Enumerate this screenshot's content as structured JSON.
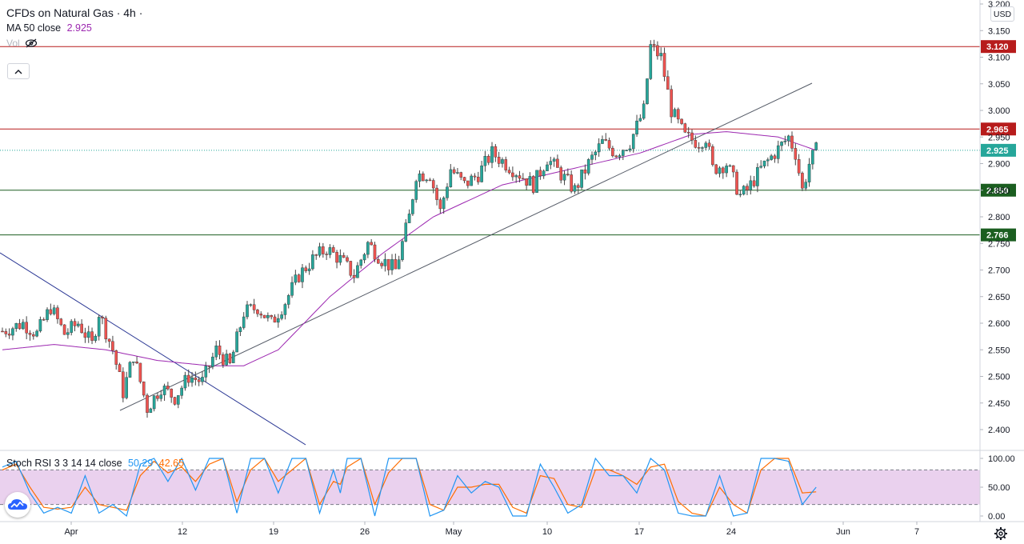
{
  "header": {
    "symbol_title": "CFDs on Natural Gas · 4h ·",
    "ma_label": "MA 50 close",
    "ma_value": "2.925",
    "vol_label": "Vol",
    "currency": "USD"
  },
  "stoch_rsi": {
    "label": "Stoch RSI 3 3 14 14 close",
    "k_value": "50.29",
    "d_value": "42.65",
    "axis_ticks": [
      "100.00",
      "50.00",
      "0.00"
    ],
    "band_upper": 80,
    "band_lower": 20
  },
  "colors": {
    "up": "#26a69a",
    "down": "#ef5350",
    "ma": "#9c27b0",
    "resistance": "#b71c1c",
    "support": "#1b5e20",
    "current": "#26a69a",
    "stoch_k": "#2196f3",
    "stoch_d": "#ff6d00",
    "stoch_band": "#e1bee7"
  },
  "chart_data": {
    "type": "candlestick",
    "title": "CFDs on Natural Gas · 4h",
    "ylim": [
      2.36,
      3.2
    ],
    "y_ticks": [
      "3.200",
      "3.150",
      "3.100",
      "3.050",
      "3.000",
      "2.950",
      "2.900",
      "2.850",
      "2.800",
      "2.750",
      "2.700",
      "2.650",
      "2.600",
      "2.550",
      "2.500",
      "2.450",
      "2.400"
    ],
    "x_ticks": [
      "Apr",
      "12",
      "19",
      "26",
      "May",
      "10",
      "17",
      "24",
      "Jun",
      "7"
    ],
    "price_labels": [
      {
        "value": 3.12,
        "label": "3.120",
        "kind": "resistance"
      },
      {
        "value": 2.965,
        "label": "2.965",
        "kind": "resistance"
      },
      {
        "value": 2.925,
        "label": "2.925",
        "kind": "current"
      },
      {
        "value": 2.85,
        "label": "2.850",
        "kind": "support"
      },
      {
        "value": 2.766,
        "label": "2.766",
        "kind": "support"
      }
    ],
    "anchors": [
      [
        0,
        2.585
      ],
      [
        6,
        2.6
      ],
      [
        10,
        2.58
      ],
      [
        14,
        2.63
      ],
      [
        18,
        2.58
      ],
      [
        22,
        2.6
      ],
      [
        26,
        2.56
      ],
      [
        28,
        2.62
      ],
      [
        32,
        2.55
      ],
      [
        35,
        2.47
      ],
      [
        38,
        2.54
      ],
      [
        42,
        2.44
      ],
      [
        46,
        2.48
      ],
      [
        50,
        2.46
      ],
      [
        54,
        2.5
      ],
      [
        58,
        2.49
      ],
      [
        62,
        2.55
      ],
      [
        66,
        2.52
      ],
      [
        70,
        2.62
      ],
      [
        74,
        2.63
      ],
      [
        78,
        2.6
      ],
      [
        82,
        2.64
      ],
      [
        86,
        2.69
      ],
      [
        90,
        2.72
      ],
      [
        94,
        2.74
      ],
      [
        98,
        2.72
      ],
      [
        102,
        2.69
      ],
      [
        106,
        2.75
      ],
      [
        110,
        2.72
      ],
      [
        114,
        2.7
      ],
      [
        118,
        2.8
      ],
      [
        120,
        2.88
      ],
      [
        124,
        2.88
      ],
      [
        127,
        2.81
      ],
      [
        130,
        2.89
      ],
      [
        134,
        2.86
      ],
      [
        138,
        2.88
      ],
      [
        142,
        2.92
      ],
      [
        146,
        2.9
      ],
      [
        150,
        2.88
      ],
      [
        154,
        2.86
      ],
      [
        158,
        2.91
      ],
      [
        162,
        2.88
      ],
      [
        166,
        2.85
      ],
      [
        170,
        2.9
      ],
      [
        174,
        2.94
      ],
      [
        178,
        2.92
      ],
      [
        182,
        2.94
      ],
      [
        186,
        3.0
      ],
      [
        188,
        3.12
      ],
      [
        191,
        3.1
      ],
      [
        194,
        3.0
      ],
      [
        198,
        2.95
      ],
      [
        202,
        2.94
      ],
      [
        204,
        2.95
      ],
      [
        206,
        2.89
      ],
      [
        210,
        2.9
      ],
      [
        214,
        2.84
      ],
      [
        216,
        2.85
      ],
      [
        220,
        2.89
      ],
      [
        224,
        2.92
      ],
      [
        228,
        2.95
      ],
      [
        230,
        2.92
      ],
      [
        232,
        2.85
      ],
      [
        234,
        2.9
      ],
      [
        236,
        2.925
      ]
    ],
    "ma50_anchors": [
      [
        0,
        2.55
      ],
      [
        15,
        2.56
      ],
      [
        30,
        2.55
      ],
      [
        45,
        2.53
      ],
      [
        60,
        2.52
      ],
      [
        70,
        2.52
      ],
      [
        80,
        2.55
      ],
      [
        95,
        2.65
      ],
      [
        110,
        2.73
      ],
      [
        125,
        2.8
      ],
      [
        145,
        2.86
      ],
      [
        165,
        2.89
      ],
      [
        185,
        2.92
      ],
      [
        200,
        2.955
      ],
      [
        210,
        2.96
      ],
      [
        225,
        2.95
      ],
      [
        236,
        2.925
      ]
    ],
    "stoch_k_anchors": [
      [
        0,
        85
      ],
      [
        4,
        95
      ],
      [
        8,
        40
      ],
      [
        12,
        5
      ],
      [
        16,
        15
      ],
      [
        20,
        5
      ],
      [
        24,
        70
      ],
      [
        28,
        5
      ],
      [
        32,
        20
      ],
      [
        36,
        0
      ],
      [
        40,
        90
      ],
      [
        44,
        100
      ],
      [
        48,
        60
      ],
      [
        52,
        100
      ],
      [
        56,
        45
      ],
      [
        60,
        100
      ],
      [
        64,
        100
      ],
      [
        68,
        5
      ],
      [
        72,
        100
      ],
      [
        76,
        100
      ],
      [
        80,
        40
      ],
      [
        84,
        100
      ],
      [
        88,
        100
      ],
      [
        92,
        5
      ],
      [
        96,
        80
      ],
      [
        98,
        40
      ],
      [
        100,
        100
      ],
      [
        104,
        100
      ],
      [
        108,
        0
      ],
      [
        112,
        100
      ],
      [
        116,
        100
      ],
      [
        120,
        100
      ],
      [
        124,
        0
      ],
      [
        128,
        10
      ],
      [
        132,
        70
      ],
      [
        136,
        40
      ],
      [
        140,
        60
      ],
      [
        144,
        50
      ],
      [
        148,
        0
      ],
      [
        152,
        0
      ],
      [
        156,
        90
      ],
      [
        160,
        50
      ],
      [
        164,
        5
      ],
      [
        168,
        20
      ],
      [
        172,
        100
      ],
      [
        176,
        70
      ],
      [
        180,
        70
      ],
      [
        184,
        40
      ],
      [
        188,
        100
      ],
      [
        192,
        80
      ],
      [
        196,
        5
      ],
      [
        200,
        0
      ],
      [
        204,
        0
      ],
      [
        208,
        70
      ],
      [
        212,
        0
      ],
      [
        216,
        5
      ],
      [
        220,
        100
      ],
      [
        224,
        100
      ],
      [
        228,
        95
      ],
      [
        232,
        20
      ],
      [
        236,
        50
      ]
    ],
    "stoch_d_anchors": [
      [
        0,
        80
      ],
      [
        4,
        90
      ],
      [
        8,
        50
      ],
      [
        12,
        15
      ],
      [
        16,
        12
      ],
      [
        20,
        15
      ],
      [
        24,
        50
      ],
      [
        28,
        20
      ],
      [
        32,
        15
      ],
      [
        36,
        10
      ],
      [
        40,
        70
      ],
      [
        44,
        95
      ],
      [
        48,
        75
      ],
      [
        52,
        85
      ],
      [
        56,
        60
      ],
      [
        60,
        90
      ],
      [
        64,
        100
      ],
      [
        68,
        25
      ],
      [
        72,
        80
      ],
      [
        76,
        100
      ],
      [
        80,
        60
      ],
      [
        84,
        80
      ],
      [
        88,
        100
      ],
      [
        92,
        20
      ],
      [
        96,
        60
      ],
      [
        98,
        55
      ],
      [
        100,
        85
      ],
      [
        104,
        100
      ],
      [
        108,
        20
      ],
      [
        112,
        75
      ],
      [
        116,
        100
      ],
      [
        120,
        100
      ],
      [
        124,
        20
      ],
      [
        128,
        10
      ],
      [
        132,
        50
      ],
      [
        136,
        50
      ],
      [
        140,
        55
      ],
      [
        144,
        55
      ],
      [
        148,
        15
      ],
      [
        152,
        5
      ],
      [
        156,
        70
      ],
      [
        160,
        65
      ],
      [
        164,
        20
      ],
      [
        168,
        15
      ],
      [
        172,
        80
      ],
      [
        176,
        80
      ],
      [
        180,
        70
      ],
      [
        184,
        55
      ],
      [
        188,
        85
      ],
      [
        192,
        90
      ],
      [
        196,
        25
      ],
      [
        200,
        5
      ],
      [
        204,
        0
      ],
      [
        208,
        50
      ],
      [
        212,
        20
      ],
      [
        216,
        5
      ],
      [
        220,
        80
      ],
      [
        224,
        100
      ],
      [
        228,
        100
      ],
      [
        232,
        40
      ],
      [
        236,
        42
      ]
    ]
  }
}
